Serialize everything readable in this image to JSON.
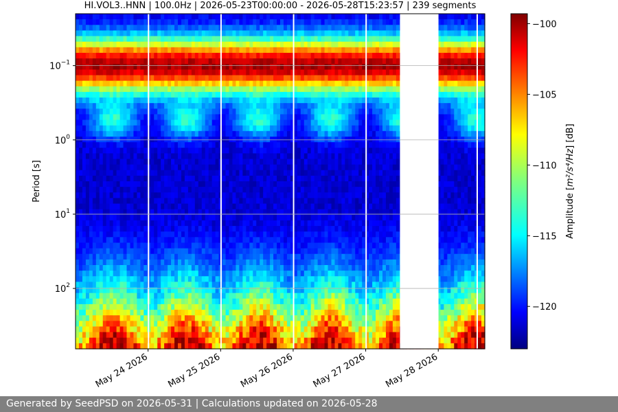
{
  "chart_data": {
    "type": "heatmap",
    "title": "HI.VOL3..HNN | 100.0Hz | 2026-05-23T00:00:00 - 2026-05-28T15:23:57 | 239 segments",
    "ylabel": "Period [s]",
    "y_scale": "log",
    "y_range_s": [
      0.02,
      650
    ],
    "y_ticks": [
      {
        "value": 0.1,
        "base": "10",
        "exp": "−1"
      },
      {
        "value": 1,
        "base": "10",
        "exp": "0"
      },
      {
        "value": 10,
        "base": "10",
        "exp": "1"
      },
      {
        "value": 100,
        "base": "10",
        "exp": "2"
      }
    ],
    "x_range": [
      "2026-05-23T00:00:00",
      "2026-05-28T15:23:57"
    ],
    "x_ticks": [
      {
        "date": "2026-05-24T00:00:00",
        "label": "May 24 2026"
      },
      {
        "date": "2026-05-25T00:00:00",
        "label": "May 25 2026"
      },
      {
        "date": "2026-05-26T00:00:00",
        "label": "May 26 2026"
      },
      {
        "date": "2026-05-27T00:00:00",
        "label": "May 27 2026"
      },
      {
        "date": "2026-05-28T00:00:00",
        "label": "May 28 2026"
      }
    ],
    "data_gaps": [
      {
        "start": "2026-05-23T23:55:00",
        "end": "2026-05-24T00:10:00"
      },
      {
        "start": "2026-05-24T23:55:00",
        "end": "2026-05-25T00:10:00"
      },
      {
        "start": "2026-05-25T23:55:00",
        "end": "2026-05-26T00:10:00"
      },
      {
        "start": "2026-05-26T23:55:00",
        "end": "2026-05-27T00:10:00"
      },
      {
        "start": "2026-05-27T11:20:00",
        "end": "2026-05-28T00:05:00"
      },
      {
        "start": "2026-05-28T12:40:00",
        "end": "2026-05-28T12:55:00"
      }
    ],
    "colorbar": {
      "label_prefix": "Amplitude [",
      "label_units": "m²/s⁴/Hz",
      "label_suffix": "] [dB]",
      "range_db": [
        -123,
        -99.3
      ],
      "ticks": [
        "−100",
        "−105",
        "−110",
        "−115",
        "−120"
      ],
      "tick_values": [
        -100,
        -105,
        -110,
        -115,
        -120
      ],
      "colormap": "jet"
    },
    "grid": "horizontal at y ticks"
  },
  "footer": {
    "text": "Generated by SeedPSD on 2026-05-31 | Calculations updated on 2026-05-28"
  }
}
